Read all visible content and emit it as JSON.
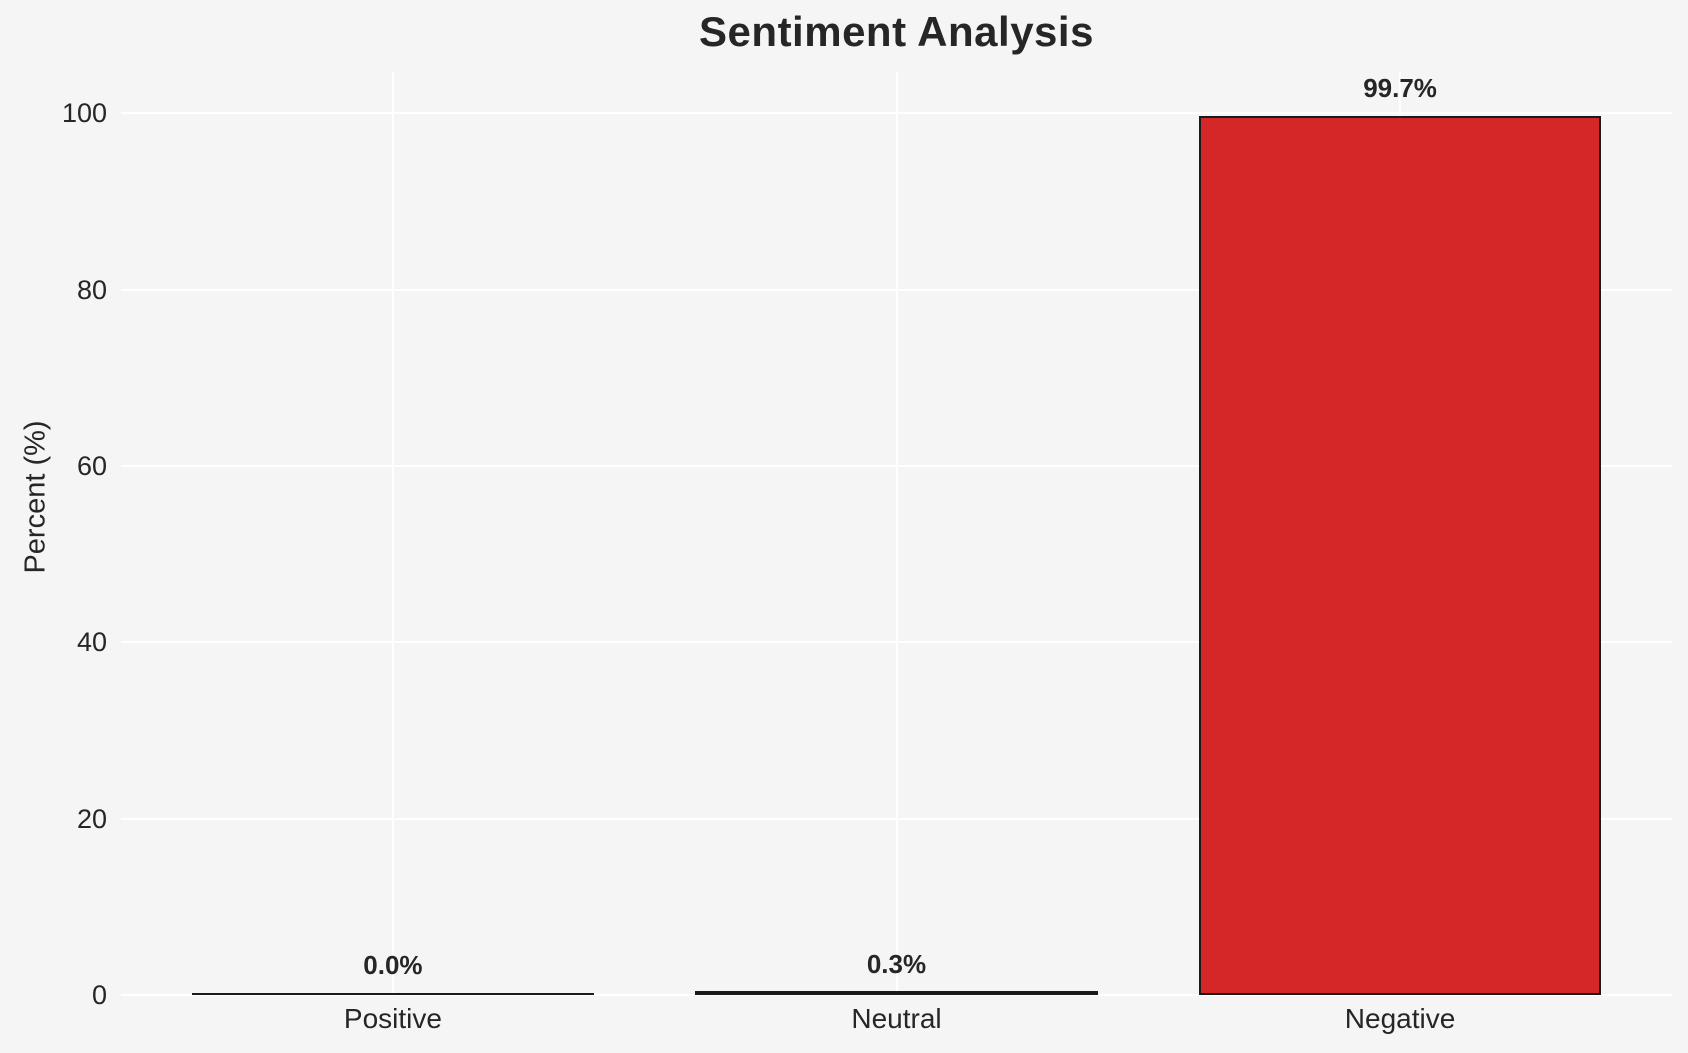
{
  "chart_data": {
    "type": "bar",
    "title": "Sentiment Analysis",
    "xlabel": "",
    "ylabel": "Percent (%)",
    "categories": [
      "Positive",
      "Neutral",
      "Negative"
    ],
    "values": [
      0.0,
      0.3,
      99.7
    ],
    "value_labels": [
      "0.0%",
      "0.3%",
      "99.7%"
    ],
    "yticks": [
      0,
      20,
      40,
      60,
      80,
      100
    ],
    "ytick_labels": [
      "0",
      "20",
      "40",
      "60",
      "80",
      "100"
    ],
    "ylim": [
      0,
      104.7
    ],
    "grid": true,
    "legend": "none",
    "colors": {
      "bar_fill": "#d62728",
      "bar_edge": "#1a1a1a",
      "background": "#f5f5f6",
      "gridline": "#ffffff",
      "text": "#262626"
    }
  }
}
